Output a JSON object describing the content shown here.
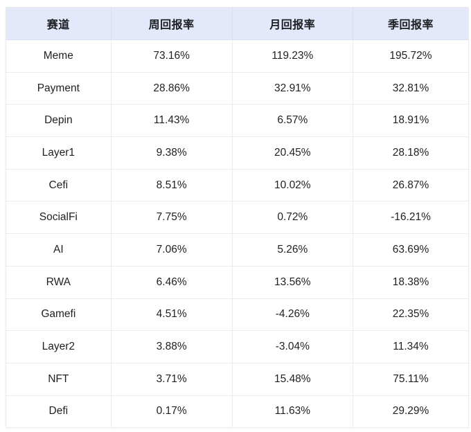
{
  "table": {
    "columns": [
      "赛道",
      "周回报率",
      "月回报率",
      "季回报率"
    ],
    "rows": [
      {
        "sector": "Meme",
        "weekly": "73.16%",
        "monthly": "119.23%",
        "quarterly": "195.72%"
      },
      {
        "sector": "Payment",
        "weekly": "28.86%",
        "monthly": "32.91%",
        "quarterly": "32.81%"
      },
      {
        "sector": "Depin",
        "weekly": "11.43%",
        "monthly": "6.57%",
        "quarterly": "18.91%"
      },
      {
        "sector": "Layer1",
        "weekly": "9.38%",
        "monthly": "20.45%",
        "quarterly": "28.18%"
      },
      {
        "sector": "Cefi",
        "weekly": "8.51%",
        "monthly": "10.02%",
        "quarterly": "26.87%"
      },
      {
        "sector": "SocialFi",
        "weekly": "7.75%",
        "monthly": "0.72%",
        "quarterly": "-16.21%"
      },
      {
        "sector": "AI",
        "weekly": "7.06%",
        "monthly": "5.26%",
        "quarterly": "63.69%"
      },
      {
        "sector": "RWA",
        "weekly": "6.46%",
        "monthly": "13.56%",
        "quarterly": "18.38%"
      },
      {
        "sector": "Gamefi",
        "weekly": "4.51%",
        "monthly": "-4.26%",
        "quarterly": "22.35%"
      },
      {
        "sector": "Layer2",
        "weekly": "3.88%",
        "monthly": "-3.04%",
        "quarterly": "11.34%"
      },
      {
        "sector": "NFT",
        "weekly": "3.71%",
        "monthly": "15.48%",
        "quarterly": "75.11%"
      },
      {
        "sector": "Defi",
        "weekly": "0.17%",
        "monthly": "11.63%",
        "quarterly": "29.29%"
      }
    ],
    "colors": {
      "header_bg": "#e3e8fa",
      "grid_border": "#ececef",
      "header_border": "#dadff0",
      "text": "#1e1f22",
      "page_bg": "#ffffff"
    }
  },
  "chart_data": {
    "type": "table",
    "title": "",
    "columns": [
      "赛道",
      "周回报率",
      "月回报率",
      "季回报率"
    ],
    "categories": [
      "Meme",
      "Payment",
      "Depin",
      "Layer1",
      "Cefi",
      "SocialFi",
      "AI",
      "RWA",
      "Gamefi",
      "Layer2",
      "NFT",
      "Defi"
    ],
    "series": [
      {
        "name": "周回报率",
        "unit": "%",
        "values": [
          73.16,
          28.86,
          11.43,
          9.38,
          8.51,
          7.75,
          7.06,
          6.46,
          4.51,
          3.88,
          3.71,
          0.17
        ]
      },
      {
        "name": "月回报率",
        "unit": "%",
        "values": [
          119.23,
          32.91,
          6.57,
          20.45,
          10.02,
          0.72,
          5.26,
          13.56,
          -4.26,
          -3.04,
          15.48,
          11.63
        ]
      },
      {
        "name": "季回报率",
        "unit": "%",
        "values": [
          195.72,
          32.81,
          18.91,
          28.18,
          26.87,
          -16.21,
          63.69,
          18.38,
          22.35,
          11.34,
          75.11,
          29.29
        ]
      }
    ],
    "layout": {
      "sort": "weekly-descending",
      "grid": true,
      "legend": "none"
    }
  }
}
